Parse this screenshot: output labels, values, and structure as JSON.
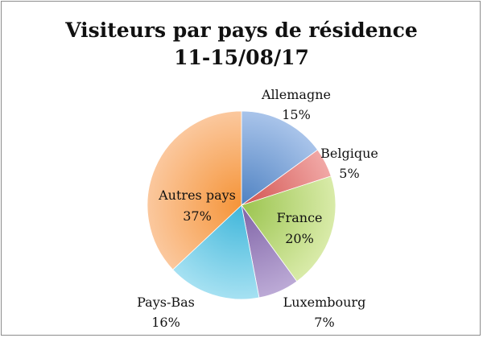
{
  "chart_data": {
    "type": "pie",
    "title_line1": "Visiteurs par pays de résidence",
    "title_line2": "11-15/08/17",
    "slices": [
      {
        "label": "Allemagne",
        "value": 15,
        "display": "15%",
        "color": "#a9c4ea",
        "shade": "#4f82c2"
      },
      {
        "label": "Belgique",
        "value": 5,
        "display": "5%",
        "color": "#f1a8a6",
        "shade": "#d2534f"
      },
      {
        "label": "France",
        "value": 20,
        "display": "20%",
        "color": "#d9eba9",
        "shade": "#9bc44f"
      },
      {
        "label": "Luxembourg",
        "value": 7,
        "display": "7%",
        "color": "#bcaad6",
        "shade": "#7f63a6"
      },
      {
        "label": "Pays-Bas",
        "value": 16,
        "display": "16%",
        "color": "#a6e1f2",
        "shade": "#3fb6da"
      },
      {
        "label": "Autres pays",
        "value": 37,
        "display": "37%",
        "color": "#fbc89e",
        "shade": "#f59438"
      }
    ]
  }
}
